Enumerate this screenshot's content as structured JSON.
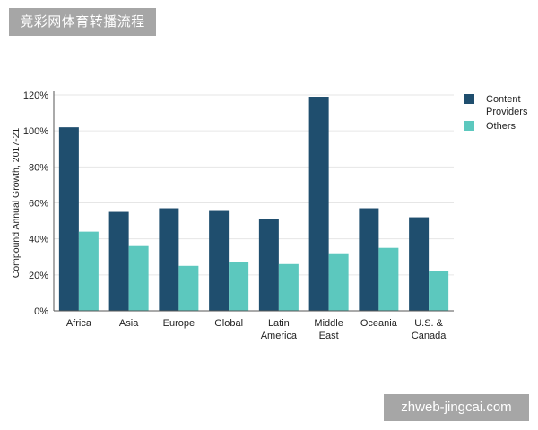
{
  "watermark_top": "竞彩网体育转播流程",
  "watermark_bottom": "zhweb-jingcai.com",
  "chart_data": {
    "type": "bar",
    "title": "",
    "xlabel": "",
    "ylabel": "Compound Annual Growth, 2017-21",
    "categories": [
      [
        "Africa"
      ],
      [
        "Asia"
      ],
      [
        "Europe"
      ],
      [
        "Global"
      ],
      [
        "Latin",
        "America"
      ],
      [
        "Middle",
        "East"
      ],
      [
        "Oceania"
      ],
      [
        "U.S. &",
        "Canada"
      ]
    ],
    "series": [
      {
        "name": "Content Providers",
        "name_lines": [
          "Content",
          "Providers"
        ],
        "color": "#1f4e6e",
        "values": [
          102,
          55,
          57,
          56,
          51,
          119,
          57,
          52
        ]
      },
      {
        "name": "Others",
        "name_lines": [
          "Others"
        ],
        "color": "#5cc8be",
        "values": [
          44,
          36,
          25,
          27,
          26,
          32,
          35,
          22
        ]
      }
    ],
    "ylim": [
      0,
      120
    ],
    "yticks": [
      0,
      20,
      40,
      60,
      80,
      100,
      120
    ],
    "tick_suffix": "%",
    "grid": true,
    "legend_position": "right"
  }
}
